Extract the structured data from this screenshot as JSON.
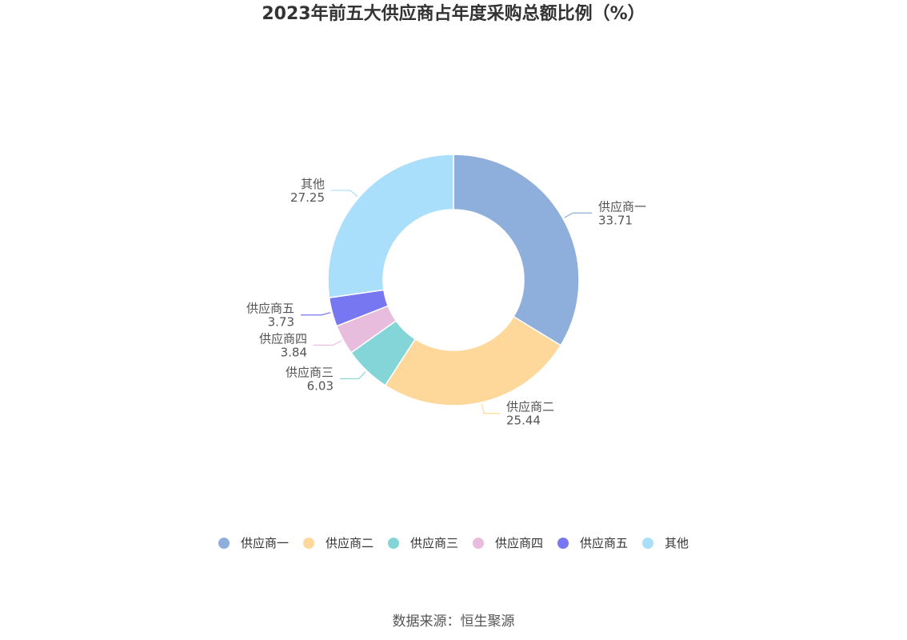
{
  "title": "2023年前五大供应商占年度采购总额比例（%）",
  "source": "数据来源：恒生聚源",
  "chart_data": {
    "type": "pie",
    "variant": "donut",
    "title": "2023年前五大供应商占年度采购总额比例（%）",
    "legend_position": "bottom",
    "slices": [
      {
        "label": "供应商一",
        "value": 33.71,
        "value_text": "33.71",
        "color": "#8eaedb"
      },
      {
        "label": "供应商二",
        "value": 25.44,
        "value_text": "25.44",
        "color": "#fdd89a"
      },
      {
        "label": "供应商三",
        "value": 6.03,
        "value_text": "6.03",
        "color": "#84d5d8"
      },
      {
        "label": "供应商四",
        "value": 3.84,
        "value_text": "3.84",
        "color": "#e8bcdd"
      },
      {
        "label": "供应商五",
        "value": 3.73,
        "value_text": "3.73",
        "color": "#7877f2"
      },
      {
        "label": "其他",
        "value": 27.25,
        "value_text": "27.25",
        "color": "#a9dffa"
      }
    ]
  }
}
